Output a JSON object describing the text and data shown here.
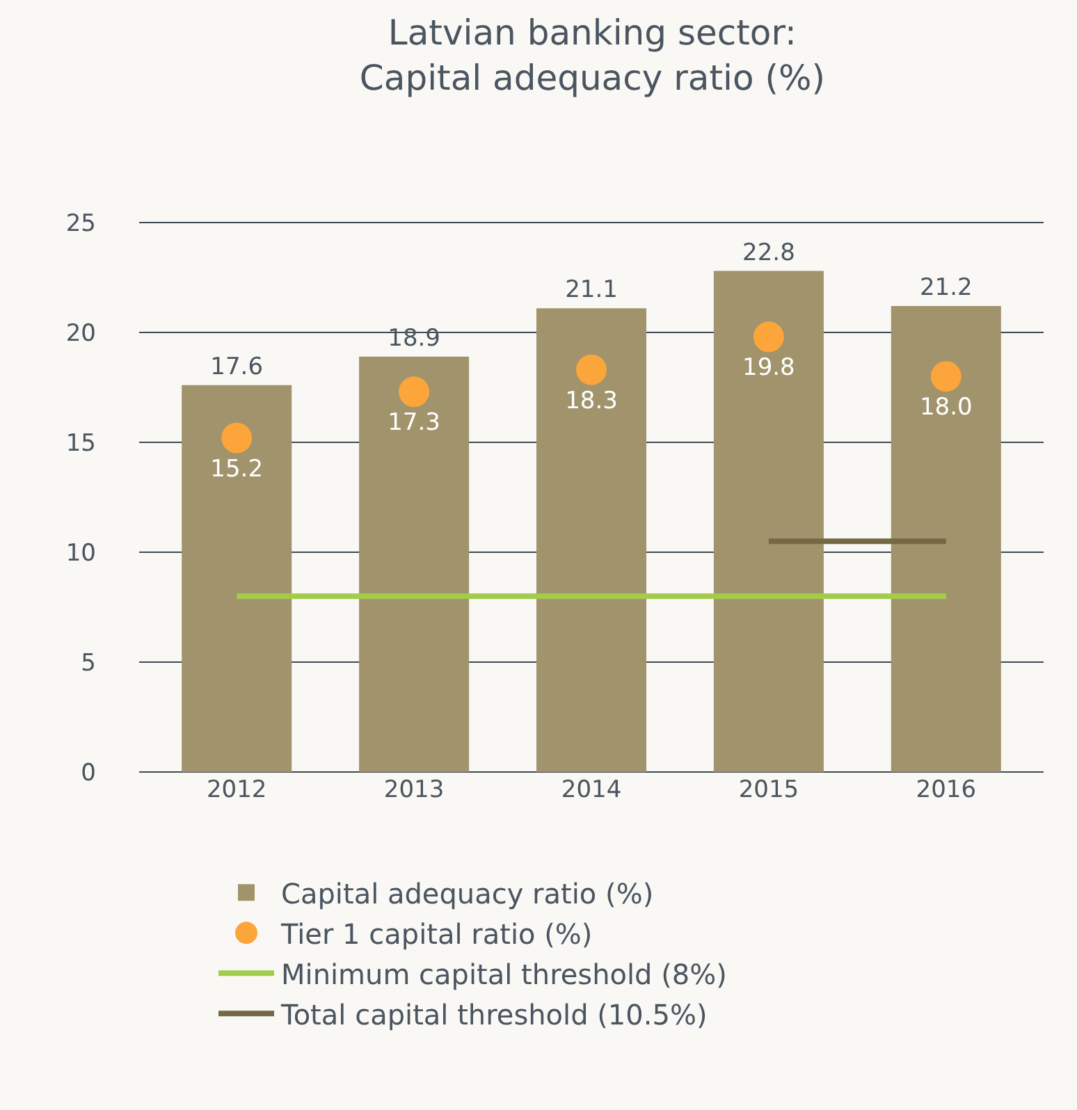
{
  "chart_data": {
    "type": "bar",
    "title": "Latvian banking sector:\nCapital adequacy ratio (%)",
    "categories": [
      "2012",
      "2013",
      "2014",
      "2015",
      "2016"
    ],
    "series": [
      {
        "name": "Capital adequacy ratio (%)",
        "color": "#a1946c",
        "values": [
          17.6,
          18.9,
          21.1,
          22.8,
          21.2
        ],
        "value_labels": [
          "17.6",
          "18.9",
          "21.1",
          "22.8",
          "21.2"
        ]
      },
      {
        "name": "Tier 1 capital ratio (%)",
        "type": "scatter",
        "marker": "circle",
        "color": "#fba53a",
        "values": [
          15.2,
          17.3,
          18.3,
          19.8,
          18.0
        ],
        "value_labels": [
          "15.2",
          "17.3",
          "18.3",
          "19.8",
          "18.0"
        ]
      },
      {
        "name": "Minimum capital threshold (8%)",
        "type": "line",
        "color": "#a3cc4a",
        "values": [
          8,
          8,
          8,
          8,
          8
        ]
      },
      {
        "name": "Total capital threshold (10.5%)",
        "type": "line",
        "color": "#756845",
        "values": [
          null,
          null,
          null,
          10.5,
          10.5
        ]
      }
    ],
    "ylim": [
      0,
      25
    ],
    "yticks": [
      0,
      5,
      10,
      15,
      20,
      25
    ],
    "grid": "y",
    "legend": "bottom"
  }
}
